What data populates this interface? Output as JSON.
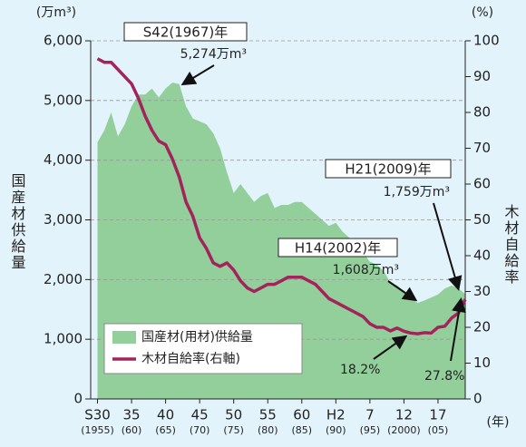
{
  "chart_data": {
    "type": "area_line",
    "y_unit": "(万m³)",
    "y2_unit": "(%)",
    "x_unit": "(年)",
    "ylabel": "国産材供給量",
    "y2label": "木材自給率",
    "xlim": [
      1954,
      2009
    ],
    "x": [
      1955,
      1956,
      1957,
      1958,
      1959,
      1960,
      1961,
      1962,
      1963,
      1964,
      1965,
      1966,
      1967,
      1968,
      1969,
      1970,
      1971,
      1972,
      1973,
      1974,
      1975,
      1976,
      1977,
      1978,
      1979,
      1980,
      1981,
      1982,
      1983,
      1984,
      1985,
      1986,
      1987,
      1988,
      1989,
      1990,
      1991,
      1992,
      1993,
      1994,
      1995,
      1996,
      1997,
      1998,
      1999,
      2000,
      2001,
      2002,
      2003,
      2004,
      2005,
      2006,
      2007,
      2008,
      2009
    ],
    "xticks": [
      {
        "value": 1955,
        "label": "S30"
      },
      {
        "value": 1960,
        "label": "35"
      },
      {
        "value": 1965,
        "label": "40"
      },
      {
        "value": 1970,
        "label": "45"
      },
      {
        "value": 1975,
        "label": "50"
      },
      {
        "value": 1980,
        "label": "55"
      },
      {
        "value": 1985,
        "label": "60"
      },
      {
        "value": 1990,
        "label": "H2"
      },
      {
        "value": 1995,
        "label": "7"
      },
      {
        "value": 2000,
        "label": "12"
      },
      {
        "value": 2005,
        "label": "17"
      }
    ],
    "xtick_years": [
      "(1955)",
      "(60)",
      "(65)",
      "(70)",
      "(75)",
      "(80)",
      "(85)",
      "(90)",
      "(95)",
      "(2000)",
      "(05)"
    ],
    "ylim": [
      0,
      6000
    ],
    "yticks": [
      {
        "value": 0,
        "label": "0"
      },
      {
        "value": 1000,
        "label": "1,000"
      },
      {
        "value": 2000,
        "label": "2,000"
      },
      {
        "value": 3000,
        "label": "3,000"
      },
      {
        "value": 4000,
        "label": "4,000"
      },
      {
        "value": 5000,
        "label": "5,000"
      },
      {
        "value": 6000,
        "label": "6,000"
      }
    ],
    "y2lim": [
      0,
      100
    ],
    "y2ticks": [
      0,
      10,
      20,
      30,
      40,
      50,
      60,
      70,
      80,
      90,
      100
    ],
    "grid": true,
    "series": [
      {
        "name": "国産材(用材)供給量",
        "color": "#93cf9b",
        "kind": "area",
        "values": [
          4300,
          4500,
          4800,
          4400,
          4600,
          4900,
          5100,
          5100,
          5200,
          5050,
          5200,
          5300,
          5274,
          4900,
          4700,
          4650,
          4600,
          4450,
          4200,
          3800,
          3450,
          3600,
          3450,
          3300,
          3400,
          3450,
          3200,
          3250,
          3250,
          3300,
          3300,
          3200,
          3100,
          3000,
          2900,
          2950,
          2800,
          2700,
          2600,
          2450,
          2300,
          2250,
          2150,
          1950,
          1900,
          1800,
          1700,
          1608,
          1650,
          1700,
          1750,
          1850,
          1900,
          1850,
          1759
        ]
      },
      {
        "name": "木材自給率(右軸)",
        "color": "#a3245c",
        "kind": "line",
        "axis": "y2",
        "values": [
          95,
          94,
          94,
          92,
          90,
          88,
          84,
          79,
          75,
          72,
          71,
          67,
          62,
          55,
          51,
          45,
          42,
          38,
          37,
          38,
          36,
          33,
          31,
          30,
          31,
          32,
          32,
          33,
          34,
          34,
          34,
          33,
          32,
          30,
          28,
          27,
          26,
          25,
          24,
          23,
          21,
          20,
          20,
          19,
          19.8,
          18.9,
          18.4,
          18.2,
          18.5,
          18.4,
          20,
          20.3,
          22.6,
          24,
          27.8
        ]
      }
    ],
    "annotations": [
      {
        "x": 1967,
        "title": "S42(1967)年",
        "label": "5,274万m³"
      },
      {
        "x": 2009,
        "title": "H21(2009)年",
        "label": "1,759万m³"
      },
      {
        "x": 2002,
        "title": "H14(2002)年",
        "label": "1,608万m³"
      },
      {
        "x": 2002,
        "label": "18.2%"
      },
      {
        "x": 2009,
        "label": "27.8%"
      }
    ]
  }
}
